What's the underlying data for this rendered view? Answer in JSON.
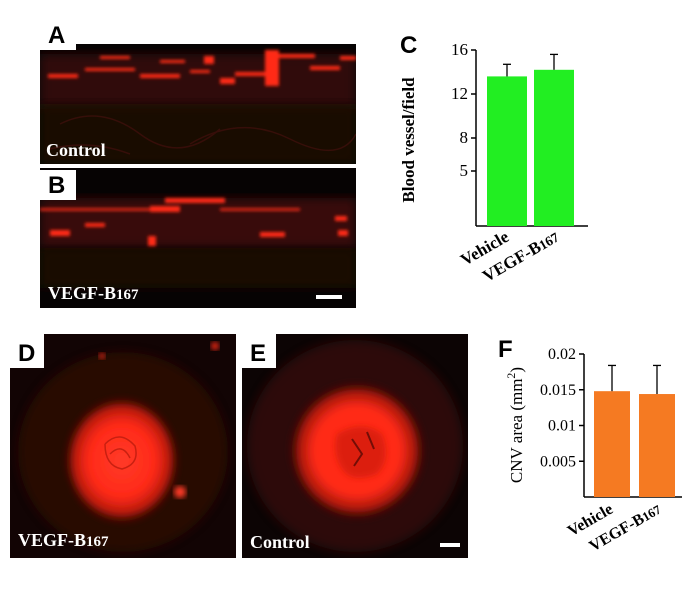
{
  "panels": {
    "A": {
      "letter": "A",
      "label": "Control"
    },
    "B": {
      "letter": "B",
      "label_main": "VEGF-B",
      "label_sub": "167"
    },
    "C": {
      "letter": "C"
    },
    "D": {
      "letter": "D",
      "label_main": "VEGF-B",
      "label_sub": "167"
    },
    "E": {
      "letter": "E",
      "label": "Control"
    },
    "F": {
      "letter": "F"
    }
  },
  "colors": {
    "chart_c_bar": "#22ee22",
    "chart_f_bar": "#f57a22",
    "vessel_red": "#ff2a18"
  },
  "chart_data": [
    {
      "id": "C",
      "type": "bar",
      "categories": [
        "Vehicle",
        "VEGF-B167"
      ],
      "category_labels": [
        {
          "main": "Vehicle",
          "sub": ""
        },
        {
          "main": "VEGF-B",
          "sub": "167"
        }
      ],
      "values": [
        13.6,
        14.2
      ],
      "errors": [
        1.1,
        1.4
      ],
      "ylabel": "Blood vessel/field",
      "ylim": [
        0,
        16
      ],
      "yticks": [
        5,
        8,
        12,
        16
      ],
      "ytick_labels": [
        "5",
        "8",
        "12",
        "16"
      ],
      "grid": false
    },
    {
      "id": "F",
      "type": "bar",
      "categories": [
        "Vehicle",
        "VEGF-B167"
      ],
      "category_labels": [
        {
          "main": "Vehicle",
          "sub": ""
        },
        {
          "main": "VEGF-B",
          "sub": "167"
        }
      ],
      "values": [
        0.0148,
        0.0144
      ],
      "errors": [
        0.0036,
        0.004
      ],
      "ylabel": "CNV area (mm",
      "ylabel_sup": "2",
      "ylabel_end": ")",
      "ylim": [
        0,
        0.02
      ],
      "yticks": [
        0.005,
        0.01,
        0.015,
        0.02
      ],
      "ytick_labels": [
        "0.005",
        "0.01",
        "0.015",
        "0.02"
      ],
      "grid": false
    }
  ]
}
